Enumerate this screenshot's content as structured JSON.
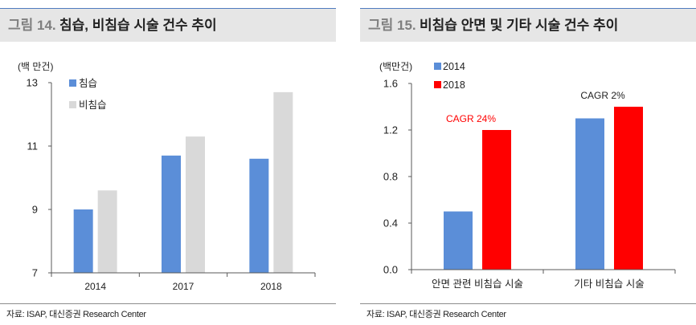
{
  "chart_data": [
    {
      "figure_label": "그림 14.",
      "title": "침습, 비침습 시술 건수 추이",
      "unit_label": "(백 만건)",
      "type": "bar",
      "categories": [
        "2014",
        "2017",
        "2018"
      ],
      "series": [
        {
          "name": "침습",
          "values": [
            9.0,
            10.7,
            10.6
          ],
          "color": "#5B8ED8"
        },
        {
          "name": "비침습",
          "values": [
            9.6,
            11.3,
            12.7
          ],
          "color": "#D9D9D9"
        }
      ],
      "ylim": [
        7,
        13
      ],
      "yticks": [
        "13",
        "11",
        "9",
        "7"
      ],
      "grid": false,
      "legend": "top-left",
      "source": "자료: ISAP, 대신증권 Research Center"
    },
    {
      "figure_label": "그림 15.",
      "title": "비침습 안면 및 기타 시술 건수 추이",
      "unit_label": "(백만건)",
      "type": "bar",
      "categories": [
        "안면 관련 비침습 시술",
        "기타 비침습 시술"
      ],
      "series": [
        {
          "name": "2014",
          "values": [
            0.5,
            1.3
          ],
          "color": "#5B8ED8"
        },
        {
          "name": "2018",
          "values": [
            1.2,
            1.4
          ],
          "color": "#FF0000"
        }
      ],
      "ylim": [
        0,
        1.6
      ],
      "yticks": [
        "1.6",
        "1.2",
        "0.8",
        "0.4",
        "0.0"
      ],
      "annotations": [
        {
          "text": "CAGR 24%",
          "category": 0,
          "color": "#FF0000"
        },
        {
          "text": "CAGR 2%",
          "category": 1,
          "color": "#222222"
        }
      ],
      "grid": false,
      "legend": "top",
      "source": "자료: ISAP, 대신증권 Research Center"
    }
  ],
  "colors": {
    "header_bg": "#E6E6E6",
    "header_rule": "#4F7BBF",
    "figure_label": "#7F7F7F",
    "axis": "#595959"
  }
}
